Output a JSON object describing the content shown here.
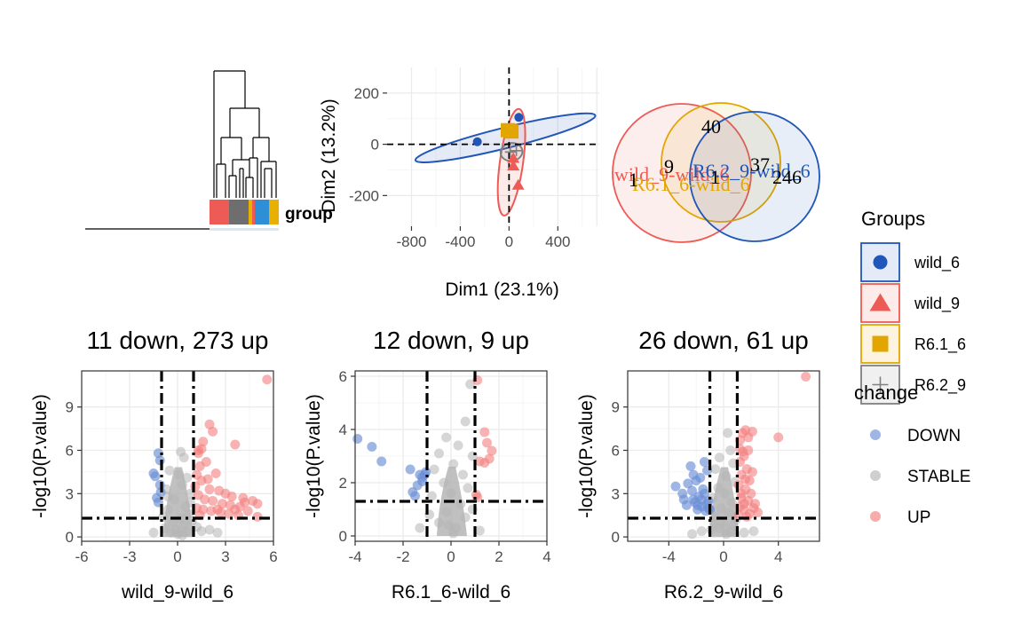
{
  "colors": {
    "wild_6": "#2056b8",
    "wild_9": "#ee5a55",
    "R6.1_6": "#e3a600",
    "R6.2_9": "#808080",
    "heat_gray": "#6e6e6e",
    "heat_blue": "#2e8fd6",
    "heat_yellow": "#e8b000",
    "down": "#6b8fd6",
    "stable": "#b5b5b5",
    "up": "#f47e7e",
    "grid": "#ebebeb"
  },
  "heatmap": {
    "annotation_label": "group",
    "groups_order": [
      "wild_9",
      "R6.2_9",
      "wild_9",
      "R6.1_6",
      "wild_6",
      "R6.1_6"
    ]
  },
  "pca": {
    "xlabel": "Dim1 (23.1%)",
    "ylabel": "Dim2 (13.2%)",
    "xticks": [
      -800,
      -400,
      0,
      400
    ],
    "yticks": [
      -200,
      0,
      200
    ],
    "xlim": [
      -1000,
      740
    ],
    "ylim": [
      -320,
      300
    ],
    "ellipses": [
      {
        "group": "wild_6",
        "cx": -30,
        "cy": 25,
        "rx": 760,
        "ry": 40,
        "angle": 14
      },
      {
        "group": "wild_9",
        "cx": 20,
        "cy": -70,
        "rx": 95,
        "ry": 210,
        "angle": -8
      },
      {
        "group": "R6.2_9",
        "cx": 20,
        "cy": -30,
        "rx": 90,
        "ry": 35,
        "angle": 8
      },
      {
        "group": "R6.1_6",
        "cx": 0,
        "cy": 55,
        "rx": 20,
        "ry": 15,
        "angle": 0
      }
    ],
    "points": [
      {
        "group": "wild_6",
        "x": -260,
        "y": 10
      },
      {
        "group": "wild_6",
        "x": 80,
        "y": 105
      },
      {
        "group": "wild_9",
        "x": 35,
        "y": -55
      },
      {
        "group": "wild_9",
        "x": 35,
        "y": -85
      },
      {
        "group": "wild_9",
        "x": 75,
        "y": -160
      },
      {
        "group": "R6.1_6",
        "x": -10,
        "y": 55
      },
      {
        "group": "R6.1_6",
        "x": 20,
        "y": 50
      },
      {
        "group": "R6.2_9",
        "x": 60,
        "y": -25
      },
      {
        "group": "R6.2_9",
        "x": 10,
        "y": -30
      }
    ]
  },
  "legend_groups": {
    "title": "Groups",
    "items": [
      {
        "label": "wild_6",
        "shape": "circle"
      },
      {
        "label": "wild_9",
        "shape": "triangle"
      },
      {
        "label": "R6.1_6",
        "shape": "square"
      },
      {
        "label": "R6.2_9",
        "shape": "cross"
      }
    ]
  },
  "venn": {
    "sets": [
      {
        "label": "wild_9-wild_6",
        "color": "#ee5a55"
      },
      {
        "label": "R6.1_6-wild_6",
        "color": "#e3a600"
      },
      {
        "label": "R6.2_9-wild_6",
        "color": "#2056b8"
      }
    ],
    "counts": [
      "40",
      "1",
      "9",
      "1",
      "37",
      "246"
    ]
  },
  "legend_change": {
    "title": "change",
    "items": [
      "DOWN",
      "STABLE",
      "UP"
    ]
  },
  "chart_data": [
    {
      "type": "scatter",
      "title": "11 down, 273 up",
      "xlabel": "wild_9-wild_6",
      "ylabel": "-log10(P.value)",
      "xlim": [
        -6,
        6
      ],
      "ylim": [
        -0.3,
        11.5
      ],
      "xticks": [
        -6,
        -3,
        0,
        3,
        6
      ],
      "yticks": [
        0,
        3,
        6,
        9
      ],
      "fc_lines": [
        -1,
        1
      ],
      "p_line": 1.3,
      "down": [
        [
          -1.2,
          5.8
        ],
        [
          -1.4,
          4.2
        ],
        [
          -1.1,
          3.6
        ],
        [
          -1.3,
          2.7
        ],
        [
          -1.2,
          2.4
        ],
        [
          -1.1,
          5.3
        ],
        [
          -1.5,
          4.4
        ],
        [
          -1.05,
          3.1
        ]
      ],
      "up": [
        [
          5.6,
          10.9
        ],
        [
          2.0,
          7.8
        ],
        [
          2.2,
          7.3
        ],
        [
          3.6,
          6.4
        ],
        [
          1.6,
          6.6
        ],
        [
          1.3,
          5.8
        ],
        [
          1.8,
          5.2
        ],
        [
          1.4,
          4.9
        ],
        [
          1.2,
          4.3
        ],
        [
          2.4,
          4.4
        ],
        [
          1.5,
          3.9
        ],
        [
          1.1,
          3.5
        ],
        [
          2.0,
          3.3
        ],
        [
          2.6,
          3.2
        ],
        [
          3.0,
          3.0
        ],
        [
          3.4,
          2.8
        ],
        [
          4.1,
          2.7
        ],
        [
          4.7,
          2.5
        ],
        [
          5.0,
          2.3
        ],
        [
          1.3,
          2.9
        ],
        [
          1.7,
          2.6
        ],
        [
          2.2,
          2.5
        ],
        [
          2.8,
          2.3
        ],
        [
          3.3,
          2.2
        ],
        [
          3.9,
          2.1
        ],
        [
          4.4,
          1.8
        ],
        [
          1.2,
          2.0
        ],
        [
          1.6,
          1.9
        ],
        [
          2.1,
          1.8
        ],
        [
          2.7,
          1.7
        ],
        [
          3.2,
          1.6
        ],
        [
          3.8,
          1.5
        ],
        [
          1.4,
          1.5
        ],
        [
          5.0,
          1.4
        ],
        [
          4.2,
          2.4
        ],
        [
          1.9,
          4.0
        ],
        [
          1.5,
          6.1
        ],
        [
          1.3,
          6.0
        ],
        [
          2.5,
          1.9
        ],
        [
          3.6,
          1.9
        ]
      ],
      "stable": [
        [
          0.2,
          5.9
        ],
        [
          0.4,
          5.5
        ],
        [
          0.1,
          4.3
        ],
        [
          -0.5,
          4.6
        ],
        [
          0.6,
          4.1
        ],
        [
          0.3,
          3.6
        ],
        [
          -0.7,
          3.3
        ],
        [
          0.8,
          3.0
        ],
        [
          -0.2,
          2.6
        ],
        [
          0.5,
          2.1
        ],
        [
          -0.6,
          1.9
        ],
        [
          0.7,
          1.6
        ],
        [
          0.2,
          1.3
        ],
        [
          -0.3,
          1.0
        ],
        [
          0.4,
          0.8
        ],
        [
          -0.1,
          0.5
        ],
        [
          0.6,
          0.4
        ],
        [
          -0.8,
          0.6
        ],
        [
          0.9,
          1.1
        ],
        [
          -0.9,
          1.4
        ],
        [
          0.0,
          0.2
        ],
        [
          1.5,
          0.4
        ],
        [
          2.0,
          0.5
        ],
        [
          2.5,
          0.3
        ],
        [
          1.2,
          0.7
        ],
        [
          -1.5,
          0.3
        ],
        [
          0.3,
          0.1
        ],
        [
          -0.4,
          0.3
        ],
        [
          0.8,
          2.4
        ],
        [
          -0.6,
          2.8
        ]
      ]
    },
    {
      "type": "scatter",
      "title": "12 down, 9 up",
      "xlabel": "R6.1_6-wild_6",
      "ylabel": "-log10(P.value)",
      "xlim": [
        -4,
        4
      ],
      "ylim": [
        -0.2,
        6.2
      ],
      "xticks": [
        -4,
        -2,
        0,
        2,
        4
      ],
      "yticks": [
        0,
        2,
        4,
        6
      ],
      "fc_lines": [
        -1,
        1
      ],
      "p_line": 1.3,
      "down": [
        [
          -3.9,
          3.65
        ],
        [
          -3.3,
          3.35
        ],
        [
          -2.9,
          2.8
        ],
        [
          -1.7,
          2.5
        ],
        [
          -1.6,
          1.65
        ],
        [
          -1.5,
          1.5
        ],
        [
          -1.3,
          2.3
        ],
        [
          -1.2,
          2.2
        ],
        [
          -1.2,
          2.05
        ],
        [
          -1.1,
          2.3
        ],
        [
          -1.4,
          1.9
        ],
        [
          -1.05,
          2.4
        ]
      ],
      "up": [
        [
          1.1,
          5.85
        ],
        [
          1.4,
          3.9
        ],
        [
          1.5,
          3.5
        ],
        [
          1.7,
          3.2
        ],
        [
          1.6,
          2.9
        ],
        [
          1.4,
          2.75
        ],
        [
          1.2,
          2.8
        ],
        [
          1.1,
          1.45
        ],
        [
          1.05,
          1.55
        ]
      ],
      "stable": [
        [
          0.8,
          5.7
        ],
        [
          0.6,
          4.3
        ],
        [
          -0.2,
          3.7
        ],
        [
          0.3,
          3.4
        ],
        [
          -0.5,
          3.1
        ],
        [
          0.9,
          3.0
        ],
        [
          0.1,
          2.7
        ],
        [
          -0.7,
          2.5
        ],
        [
          0.5,
          2.3
        ],
        [
          -0.3,
          2.0
        ],
        [
          0.7,
          1.8
        ],
        [
          0.0,
          1.6
        ],
        [
          -0.8,
          1.5
        ],
        [
          0.4,
          1.2
        ],
        [
          -0.2,
          0.9
        ],
        [
          0.6,
          0.7
        ],
        [
          -0.5,
          0.5
        ],
        [
          0.2,
          0.3
        ],
        [
          -0.9,
          0.8
        ],
        [
          0.9,
          1.0
        ],
        [
          1.2,
          0.2
        ],
        [
          -1.3,
          0.3
        ],
        [
          0.1,
          0.1
        ],
        [
          -0.1,
          0.4
        ]
      ]
    },
    {
      "type": "scatter",
      "title": "26 down, 61 up",
      "xlabel": "R6.2_9-wild_6",
      "ylabel": "-log10(P.value)",
      "xlim": [
        -7,
        7
      ],
      "ylim": [
        -0.3,
        11.5
      ],
      "xticks": [
        -4,
        0,
        4
      ],
      "yticks": [
        0,
        3,
        6,
        9
      ],
      "fc_lines": [
        -1,
        1
      ],
      "p_line": 1.3,
      "down": [
        [
          -3.5,
          3.5
        ],
        [
          -3.0,
          3.0
        ],
        [
          -2.6,
          3.7
        ],
        [
          -2.4,
          4.9
        ],
        [
          -1.4,
          5.2
        ],
        [
          -2.2,
          4.3
        ],
        [
          -2.0,
          3.9
        ],
        [
          -2.1,
          2.4
        ],
        [
          -1.6,
          2.1
        ],
        [
          -1.2,
          2.3
        ],
        [
          -1.8,
          2.8
        ],
        [
          -1.5,
          3.3
        ],
        [
          -2.7,
          2.2
        ],
        [
          -1.9,
          1.9
        ],
        [
          -1.3,
          1.8
        ],
        [
          -1.1,
          2.0
        ],
        [
          -2.3,
          3.2
        ],
        [
          -1.7,
          4.1
        ],
        [
          -1.2,
          4.6
        ],
        [
          -1.6,
          2.6
        ],
        [
          -2.9,
          2.6
        ],
        [
          -1.4,
          3.0
        ],
        [
          -1.9,
          2.2
        ],
        [
          -2.2,
          2.6
        ],
        [
          -1.1,
          2.5
        ],
        [
          -1.0,
          1.9
        ]
      ],
      "up": [
        [
          6.0,
          11.1
        ],
        [
          1.6,
          7.4
        ],
        [
          2.1,
          7.3
        ],
        [
          4.0,
          6.9
        ],
        [
          1.4,
          7.2
        ],
        [
          1.2,
          6.7
        ],
        [
          1.8,
          6.0
        ],
        [
          1.5,
          5.6
        ],
        [
          1.2,
          5.2
        ],
        [
          1.7,
          4.7
        ],
        [
          1.3,
          4.3
        ],
        [
          1.9,
          3.9
        ],
        [
          1.1,
          3.6
        ],
        [
          1.6,
          3.3
        ],
        [
          2.0,
          3.0
        ],
        [
          1.3,
          2.7
        ],
        [
          1.8,
          2.5
        ],
        [
          2.3,
          2.3
        ],
        [
          1.2,
          2.1
        ],
        [
          1.5,
          1.9
        ],
        [
          2.5,
          1.7
        ],
        [
          1.1,
          1.5
        ],
        [
          1.7,
          1.4
        ],
        [
          1.4,
          5.9
        ],
        [
          1.8,
          6.9
        ],
        [
          1.2,
          6.1
        ],
        [
          2.1,
          4.5
        ],
        [
          1.6,
          4.0
        ],
        [
          1.3,
          3.0
        ],
        [
          2.2,
          2.0
        ],
        [
          1.9,
          1.6
        ],
        [
          1.5,
          2.3
        ]
      ],
      "stable": [
        [
          0.3,
          7.2
        ],
        [
          0.5,
          6.0
        ],
        [
          -0.3,
          5.5
        ],
        [
          0.7,
          5.1
        ],
        [
          -0.6,
          4.7
        ],
        [
          0.2,
          4.2
        ],
        [
          0.8,
          3.8
        ],
        [
          -0.4,
          3.4
        ],
        [
          0.1,
          3.0
        ],
        [
          -0.8,
          2.7
        ],
        [
          0.6,
          2.4
        ],
        [
          -0.2,
          2.0
        ],
        [
          0.4,
          1.7
        ],
        [
          -0.6,
          1.4
        ],
        [
          0.9,
          1.2
        ],
        [
          0.0,
          0.9
        ],
        [
          -0.3,
          0.6
        ],
        [
          0.5,
          0.4
        ],
        [
          -0.9,
          0.5
        ],
        [
          0.2,
          0.2
        ],
        [
          1.5,
          0.3
        ],
        [
          2.2,
          0.4
        ],
        [
          -1.6,
          0.4
        ],
        [
          -2.3,
          0.2
        ],
        [
          0.7,
          0.8
        ],
        [
          -0.7,
          1.0
        ]
      ]
    }
  ]
}
